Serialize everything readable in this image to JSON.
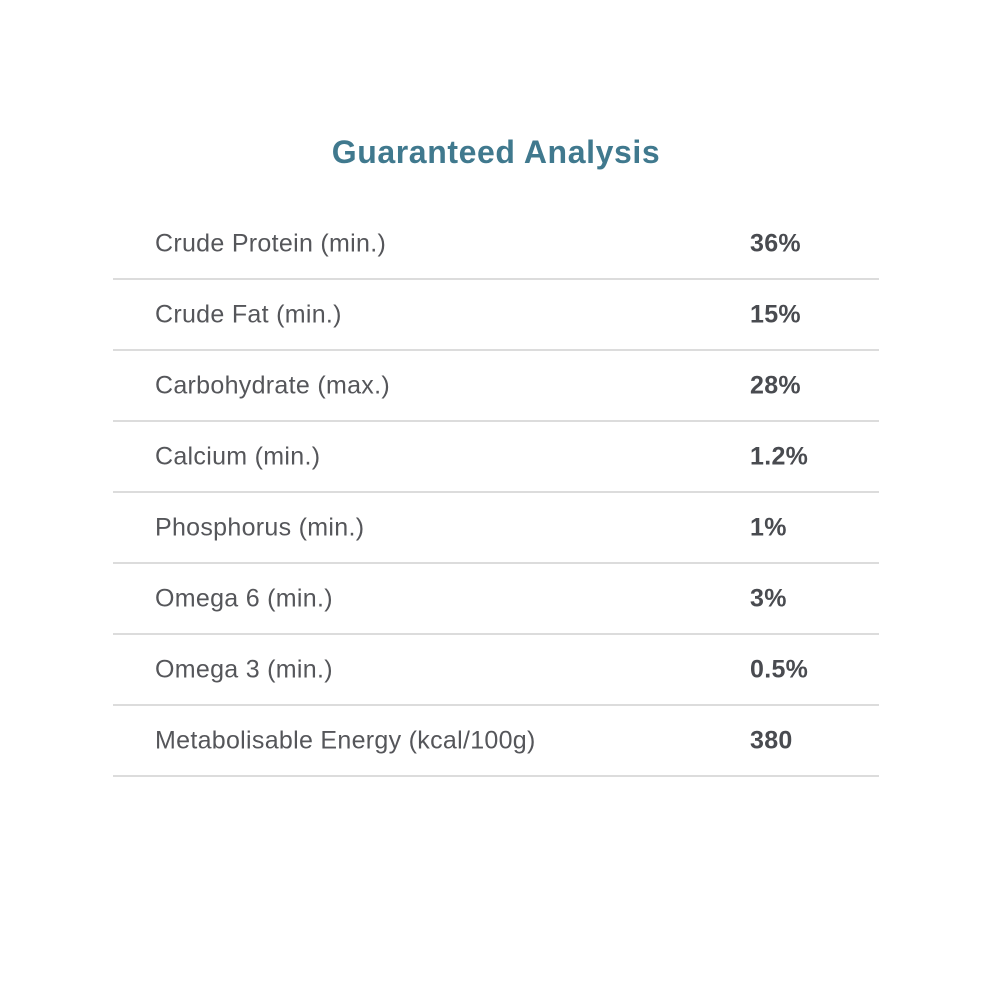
{
  "section": {
    "title": "Guaranteed Analysis"
  },
  "table": {
    "rows": [
      {
        "label": "Crude Protein (min.)",
        "value": "36%"
      },
      {
        "label": "Crude Fat (min.)",
        "value": "15%"
      },
      {
        "label": "Carbohydrate (max.)",
        "value": "28%"
      },
      {
        "label": "Calcium (min.)",
        "value": "1.2%"
      },
      {
        "label": "Phosphorus (min.)",
        "value": "1%"
      },
      {
        "label": "Omega 6 (min.)",
        "value": "3%"
      },
      {
        "label": "Omega 3 (min.)",
        "value": "0.5%"
      },
      {
        "label": "Metabolisable Energy (kcal/100g)",
        "value": "380"
      }
    ]
  },
  "colors": {
    "bg": "#ffffff",
    "title": "#40798e",
    "label": "#55565a",
    "value": "#494b50",
    "divider": "#dcdcdc"
  }
}
